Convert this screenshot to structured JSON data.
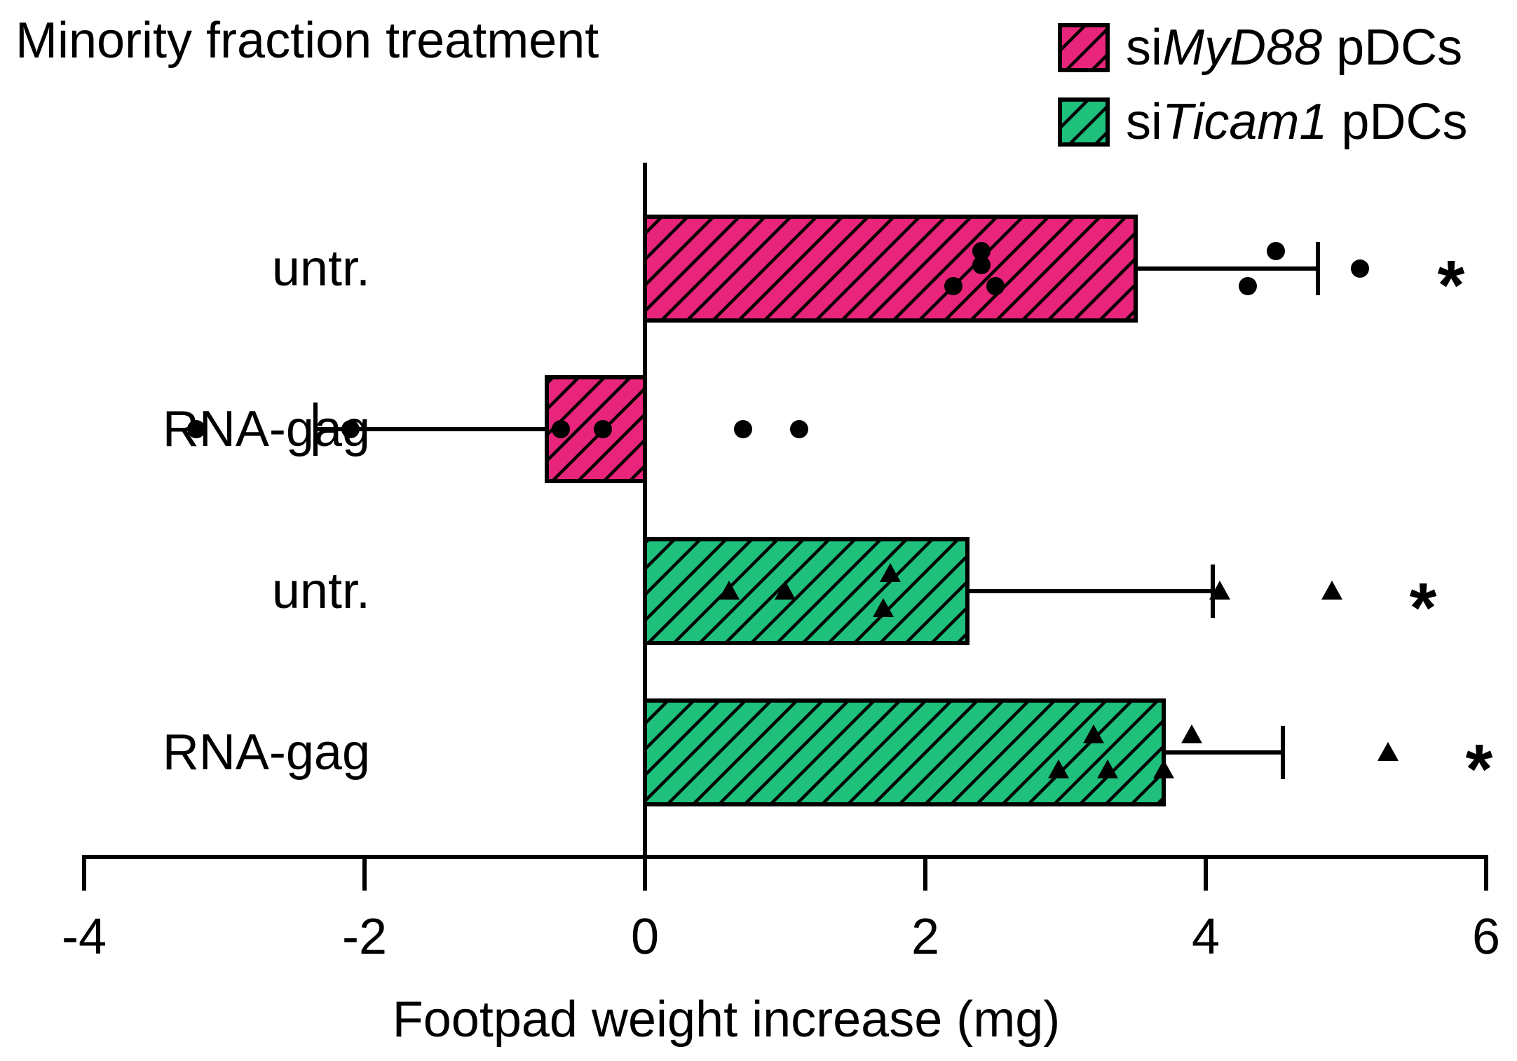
{
  "chart_data": {
    "type": "bar",
    "orientation": "horizontal",
    "title": "Minority fraction treatment",
    "xlabel": "Footpad weight increase (mg)",
    "ylabel": "",
    "xlim": [
      -4,
      6
    ],
    "xticks": [
      -4,
      -2,
      0,
      2,
      4,
      6
    ],
    "xtick_labels": [
      "-4",
      "-2",
      "0",
      "2",
      "4",
      "6"
    ],
    "grid": false,
    "legend_position": "top-right",
    "series": [
      {
        "name": "siMyD88 pDCs",
        "name_plain": "si",
        "name_italic": "MyD88",
        "name_suffix": " pDCs",
        "color": "#e8257a",
        "marker": "circle",
        "categories": [
          "untr.",
          "RNA-gag"
        ],
        "means": [
          3.5,
          -0.7
        ],
        "errors": [
          1.3,
          1.65
        ],
        "points": [
          [
            2.4,
            2.4,
            2.2,
            2.5,
            4.5,
            5.1,
            4.3
          ],
          [
            -3.2,
            -2.1,
            -0.6,
            -0.3,
            0.7,
            1.1
          ]
        ],
        "significance": [
          "*",
          ""
        ]
      },
      {
        "name": "siTicam1 pDCs",
        "name_plain": "si",
        "name_italic": "Ticam1",
        "name_suffix": " pDCs",
        "color": "#1fbf7c",
        "marker": "triangle",
        "categories": [
          "untr.",
          "RNA-gag"
        ],
        "means": [
          2.3,
          3.7
        ],
        "errors": [
          1.75,
          0.85
        ],
        "points": [
          [
            0.6,
            1.0,
            1.75,
            1.7,
            4.1,
            4.9
          ],
          [
            3.2,
            3.9,
            2.95,
            3.3,
            3.7,
            5.3
          ]
        ],
        "significance": [
          "*",
          "*"
        ]
      }
    ],
    "row_labels": [
      "untr.",
      "RNA-gag",
      "untr.",
      "RNA-gag"
    ],
    "significance_color": "#1a1aff"
  }
}
